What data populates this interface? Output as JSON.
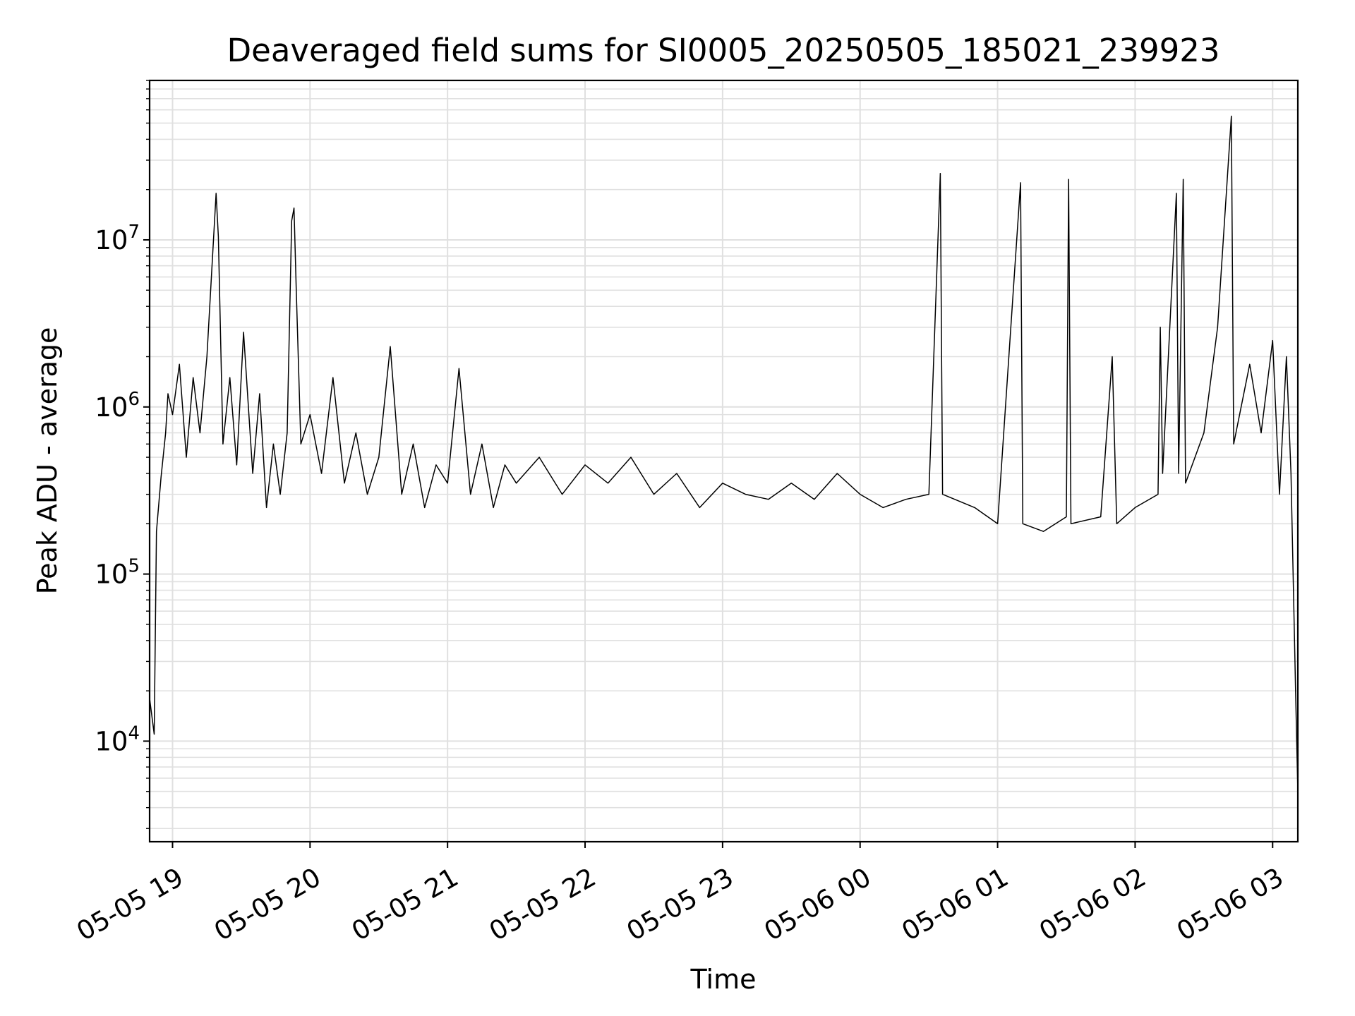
{
  "chart_data": {
    "type": "line",
    "title": "Deaveraged field sums for SI0005_20250505_185021_239923",
    "xlabel": "Time",
    "ylabel": "Peak ADU - average",
    "x_scale": "time",
    "y_scale": "log",
    "xlim": [
      "2025-05-05 18:50",
      "2025-05-06 03:11"
    ],
    "ylim": [
      2500,
      90000000
    ],
    "grid": true,
    "line_color": "#000000",
    "grid_color": "#e0e0e0",
    "x_ticks": [
      "05-05 19",
      "05-05 20",
      "05-05 21",
      "05-05 22",
      "05-05 23",
      "05-06 00",
      "05-06 01",
      "05-06 02",
      "05-06 03"
    ],
    "y_ticks": [
      {
        "base": "10",
        "exp": "4",
        "value": 10000
      },
      {
        "base": "10",
        "exp": "5",
        "value": 100000
      },
      {
        "base": "10",
        "exp": "6",
        "value": 1000000
      },
      {
        "base": "10",
        "exp": "7",
        "value": 10000000
      }
    ],
    "series": [
      {
        "values": [
          [
            "2025-05-05 18:50",
            18000
          ],
          [
            "2025-05-05 18:52",
            11000
          ],
          [
            "2025-05-05 18:53",
            180000
          ],
          [
            "2025-05-05 18:55",
            380000
          ],
          [
            "2025-05-05 18:57",
            700000
          ],
          [
            "2025-05-05 18:58",
            1200000
          ],
          [
            "2025-05-05 19:00",
            900000
          ],
          [
            "2025-05-05 19:03",
            1800000
          ],
          [
            "2025-05-05 19:06",
            500000
          ],
          [
            "2025-05-05 19:09",
            1500000
          ],
          [
            "2025-05-05 19:12",
            700000
          ],
          [
            "2025-05-05 19:15",
            2000000
          ],
          [
            "2025-05-05 19:19",
            19000000
          ],
          [
            "2025-05-05 19:20",
            10500000
          ],
          [
            "2025-05-05 19:22",
            600000
          ],
          [
            "2025-05-05 19:25",
            1500000
          ],
          [
            "2025-05-05 19:28",
            450000
          ],
          [
            "2025-05-05 19:31",
            2800000
          ],
          [
            "2025-05-05 19:35",
            400000
          ],
          [
            "2025-05-05 19:38",
            1200000
          ],
          [
            "2025-05-05 19:41",
            250000
          ],
          [
            "2025-05-05 19:44",
            600000
          ],
          [
            "2025-05-05 19:47",
            300000
          ],
          [
            "2025-05-05 19:50",
            700000
          ],
          [
            "2025-05-05 19:52",
            13000000
          ],
          [
            "2025-05-05 19:53",
            15500000
          ],
          [
            "2025-05-05 19:54",
            5000000
          ],
          [
            "2025-05-05 19:56",
            600000
          ],
          [
            "2025-05-05 20:00",
            900000
          ],
          [
            "2025-05-05 20:05",
            400000
          ],
          [
            "2025-05-05 20:10",
            1500000
          ],
          [
            "2025-05-05 20:15",
            350000
          ],
          [
            "2025-05-05 20:20",
            700000
          ],
          [
            "2025-05-05 20:25",
            300000
          ],
          [
            "2025-05-05 20:30",
            500000
          ],
          [
            "2025-05-05 20:35",
            2300000
          ],
          [
            "2025-05-05 20:40",
            300000
          ],
          [
            "2025-05-05 20:45",
            600000
          ],
          [
            "2025-05-05 20:50",
            250000
          ],
          [
            "2025-05-05 20:55",
            450000
          ],
          [
            "2025-05-05 21:00",
            350000
          ],
          [
            "2025-05-05 21:05",
            1700000
          ],
          [
            "2025-05-05 21:10",
            300000
          ],
          [
            "2025-05-05 21:15",
            600000
          ],
          [
            "2025-05-05 21:20",
            250000
          ],
          [
            "2025-05-05 21:25",
            450000
          ],
          [
            "2025-05-05 21:30",
            350000
          ],
          [
            "2025-05-05 21:40",
            500000
          ],
          [
            "2025-05-05 21:50",
            300000
          ],
          [
            "2025-05-05 22:00",
            450000
          ],
          [
            "2025-05-05 22:10",
            350000
          ],
          [
            "2025-05-05 22:20",
            500000
          ],
          [
            "2025-05-05 22:30",
            300000
          ],
          [
            "2025-05-05 22:40",
            400000
          ],
          [
            "2025-05-05 22:50",
            250000
          ],
          [
            "2025-05-05 23:00",
            350000
          ],
          [
            "2025-05-05 23:10",
            300000
          ],
          [
            "2025-05-05 23:20",
            280000
          ],
          [
            "2025-05-05 23:30",
            350000
          ],
          [
            "2025-05-05 23:40",
            280000
          ],
          [
            "2025-05-05 23:50",
            400000
          ],
          [
            "2025-05-06 00:00",
            300000
          ],
          [
            "2025-05-06 00:10",
            250000
          ],
          [
            "2025-05-06 00:20",
            280000
          ],
          [
            "2025-05-06 00:30",
            300000
          ],
          [
            "2025-05-06 00:35",
            25000000
          ],
          [
            "2025-05-06 00:36",
            300000
          ],
          [
            "2025-05-06 00:50",
            250000
          ],
          [
            "2025-05-06 01:00",
            200000
          ],
          [
            "2025-05-06 01:10",
            22000000
          ],
          [
            "2025-05-06 01:11",
            200000
          ],
          [
            "2025-05-06 01:20",
            180000
          ],
          [
            "2025-05-06 01:30",
            220000
          ],
          [
            "2025-05-06 01:31",
            23000000
          ],
          [
            "2025-05-06 01:32",
            200000
          ],
          [
            "2025-05-06 01:45",
            220000
          ],
          [
            "2025-05-06 01:50",
            2000000
          ],
          [
            "2025-05-06 01:52",
            200000
          ],
          [
            "2025-05-06 02:00",
            250000
          ],
          [
            "2025-05-06 02:10",
            300000
          ],
          [
            "2025-05-06 02:11",
            3000000
          ],
          [
            "2025-05-06 02:12",
            400000
          ],
          [
            "2025-05-06 02:18",
            19000000
          ],
          [
            "2025-05-06 02:19",
            400000
          ],
          [
            "2025-05-06 02:21",
            23000000
          ],
          [
            "2025-05-06 02:22",
            350000
          ],
          [
            "2025-05-06 02:30",
            700000
          ],
          [
            "2025-05-06 02:36",
            3000000
          ],
          [
            "2025-05-06 02:42",
            55000000
          ],
          [
            "2025-05-06 02:43",
            600000
          ],
          [
            "2025-05-06 02:50",
            1800000
          ],
          [
            "2025-05-06 02:55",
            700000
          ],
          [
            "2025-05-06 03:00",
            2500000
          ],
          [
            "2025-05-06 03:03",
            300000
          ],
          [
            "2025-05-06 03:06",
            2000000
          ],
          [
            "2025-05-06 03:08",
            400000
          ],
          [
            "2025-05-06 03:10",
            20000
          ],
          [
            "2025-05-06 03:11",
            5000
          ]
        ]
      }
    ]
  }
}
